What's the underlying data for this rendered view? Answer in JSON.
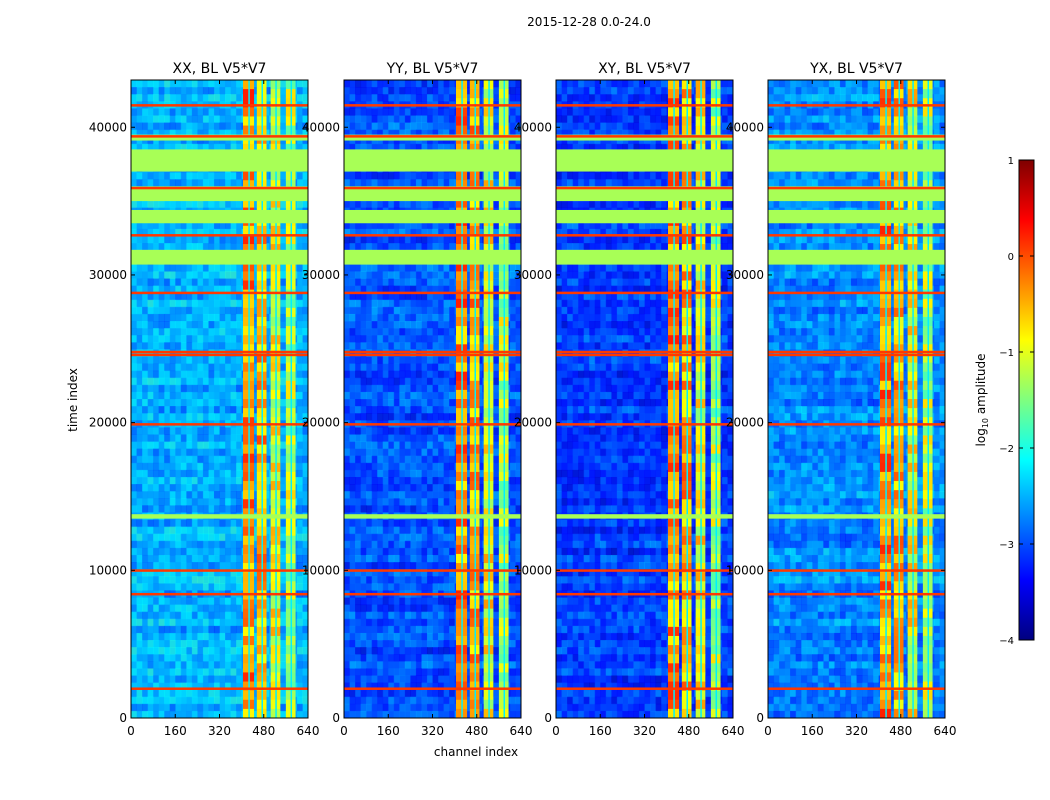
{
  "figure": {
    "suptitle": "2015-12-28 0.0-24.0",
    "ylabel": "time index",
    "xlabel": "channel index"
  },
  "colorbar": {
    "label_main": "log",
    "label_sub": "10",
    "label_rest": " amplitude",
    "range": [
      -4,
      1
    ],
    "ticks": [
      "1",
      "0",
      "−1",
      "−2",
      "−3",
      "−4"
    ],
    "tick_values": [
      1,
      0,
      -1,
      -2,
      -3,
      -4
    ],
    "colormap": [
      "#00007f",
      "#0000ff",
      "#007fff",
      "#00ffff",
      "#7fff7f",
      "#ffff00",
      "#ff7f00",
      "#ff0000",
      "#7f0000"
    ]
  },
  "chart_data": [
    {
      "type": "heatmap",
      "title": "XX, BL V5*V7",
      "x_ticks": [
        "0",
        "160",
        "320",
        "480",
        "640"
      ],
      "x_tick_values": [
        0,
        160,
        320,
        480,
        640
      ],
      "y_ticks": [
        "0",
        "10000",
        "20000",
        "30000",
        "40000"
      ],
      "y_tick_values": [
        0,
        10000,
        20000,
        30000,
        40000
      ],
      "xlim": [
        0,
        640
      ],
      "ylim": [
        0,
        43200
      ],
      "background_level": -2.5
    },
    {
      "type": "heatmap",
      "title": "YY, BL V5*V7",
      "x_ticks": [
        "0",
        "160",
        "320",
        "480",
        "640"
      ],
      "x_tick_values": [
        0,
        160,
        320,
        480,
        640
      ],
      "y_ticks": [
        "0",
        "10000",
        "20000",
        "30000",
        "40000"
      ],
      "y_tick_values": [
        0,
        10000,
        20000,
        30000,
        40000
      ],
      "xlim": [
        0,
        640
      ],
      "ylim": [
        0,
        43200
      ],
      "background_level": -3.0
    },
    {
      "type": "heatmap",
      "title": "XY, BL V5*V7",
      "x_ticks": [
        "0",
        "160",
        "320",
        "480",
        "640"
      ],
      "x_tick_values": [
        0,
        160,
        320,
        480,
        640
      ],
      "y_ticks": [
        "0",
        "10000",
        "20000",
        "30000",
        "40000"
      ],
      "y_tick_values": [
        0,
        10000,
        20000,
        30000,
        40000
      ],
      "xlim": [
        0,
        640
      ],
      "ylim": [
        0,
        43200
      ],
      "background_level": -3.1
    },
    {
      "type": "heatmap",
      "title": "YX, BL V5*V7",
      "x_ticks": [
        "0",
        "160",
        "320",
        "480",
        "640"
      ],
      "x_tick_values": [
        0,
        160,
        320,
        480,
        640
      ],
      "y_ticks": [
        "0",
        "10000",
        "20000",
        "30000",
        "40000"
      ],
      "y_tick_values": [
        0,
        10000,
        20000,
        30000,
        40000
      ],
      "xlim": [
        0,
        640
      ],
      "ylim": [
        0,
        43200
      ],
      "background_level": -2.7
    }
  ],
  "flagged_time_bands": [
    [
      30700,
      31700
    ],
    [
      33500,
      34400
    ],
    [
      35000,
      36000
    ],
    [
      37000,
      38500
    ],
    [
      39100,
      39500
    ],
    [
      13500,
      13800
    ]
  ],
  "rfi_time_lines": [
    2000,
    8400,
    10000,
    19900,
    24600,
    24800,
    28800,
    32700,
    35900,
    39400,
    41500
  ],
  "bright_channel_bands": [
    {
      "start": 405,
      "end": 445,
      "level": -0.3
    },
    {
      "start": 455,
      "end": 490,
      "level": -0.5
    },
    {
      "start": 505,
      "end": 540,
      "level": -0.9
    },
    {
      "start": 560,
      "end": 595,
      "level": -1.2
    }
  ]
}
